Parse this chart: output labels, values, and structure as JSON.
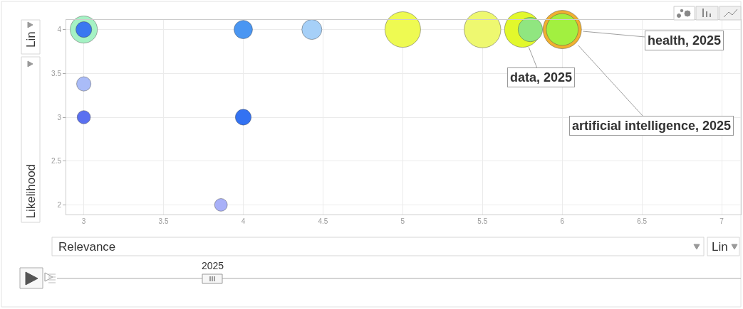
{
  "chart_data": {
    "type": "bubble",
    "xlabel": "Relevance",
    "ylabel": "Likelihood",
    "x": [
      3,
      3,
      3,
      3,
      3.86,
      4,
      4,
      4.43,
      5,
      5.5,
      5.75,
      5.8,
      6,
      6
    ],
    "values": [
      4,
      4,
      3.38,
      3,
      2,
      4,
      3,
      4,
      4,
      4,
      4,
      4,
      4,
      4
    ],
    "sizes": [
      0.5,
      0.17,
      0.14,
      0.12,
      0.11,
      0.23,
      0.17,
      0.27,
      0.86,
      0.91,
      0.86,
      0.4,
      1,
      0.69
    ],
    "colors": [
      "#a5f2c4",
      "#3a78f0",
      "#aabcf8",
      "#5a70f0",
      "#a8b0f8",
      "#4a96f2",
      "#3372f2",
      "#a6d0f8",
      "#eefa52",
      "#eef870",
      "#e2f82c",
      "#90e680",
      "#f0b030",
      "#a2f040"
    ],
    "xlim": [
      2.89,
      7.12
    ],
    "ylim": [
      1.89,
      4.11
    ],
    "xticks": [
      3,
      3.5,
      4,
      4.5,
      5,
      5.5,
      6,
      6.5,
      7
    ],
    "yticks": [
      2,
      2.5,
      3,
      3.5,
      4
    ],
    "grid": true,
    "annotations": [
      {
        "text": "health, 2025",
        "x": 6.13,
        "y": 3.98
      },
      {
        "text": "artificial intelligence, 2025",
        "x": 6.1,
        "y": 3.82
      },
      {
        "text": "data, 2025",
        "x": 5.79,
        "y": 3.8
      },
      "Lin",
      "Lin",
      "2025"
    ]
  }
}
